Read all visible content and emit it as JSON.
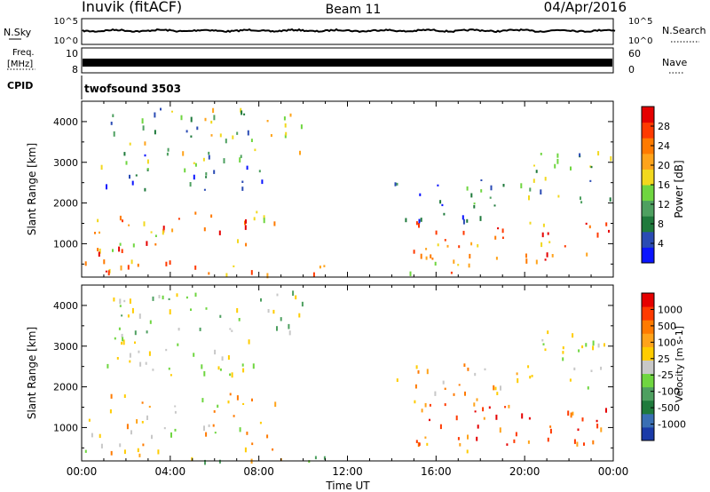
{
  "header": {
    "station": "Inuvik (fitACF)",
    "beam": "Beam 11",
    "date": "04/Apr/2016"
  },
  "top_panels": {
    "nsky": {
      "label": "N.Sky",
      "ticks": [
        "10^5",
        "10^0"
      ],
      "right_label": "N.Search",
      "right_ticks": [
        "10^5",
        "10^0"
      ]
    },
    "freq": {
      "label_line1": "Freq.",
      "label_line2": "[MHz]",
      "ticks": [
        "10",
        "8"
      ],
      "right_label": "Nave",
      "right_ticks": [
        "60",
        "0"
      ]
    },
    "cpid": {
      "label": "CPID",
      "program": "twofsound 3503"
    }
  },
  "chart_data": [
    {
      "type": "heatmap",
      "title": "",
      "xlabel": "",
      "ylabel": "Slant Range [km]",
      "xlim": [
        0,
        24
      ],
      "ylim": [
        180,
        4500
      ],
      "xtick_labels": [],
      "ytick_labels": [
        "1000",
        "2000",
        "3000",
        "4000"
      ],
      "colorbar": {
        "label": "Power [dB]",
        "range": [
          0,
          30
        ],
        "tick_labels": [
          "4",
          "8",
          "12",
          "16",
          "20",
          "24",
          "28"
        ],
        "colors": [
          "#0a14ff",
          "#2a4bb4",
          "#1f7a3c",
          "#4ea060",
          "#6fd640",
          "#f2d81e",
          "#ffa31a",
          "#ff7a00",
          "#ff3a00",
          "#e50000"
        ]
      }
    },
    {
      "type": "heatmap",
      "title": "",
      "xlabel": "Time UT",
      "ylabel": "Slant Range [km]",
      "xlim": [
        0,
        24
      ],
      "ylim": [
        180,
        4500
      ],
      "xtick_labels": [
        "00:00",
        "04:00",
        "08:00",
        "12:00",
        "16:00",
        "20:00",
        "00:00"
      ],
      "ytick_labels": [
        "1000",
        "2000",
        "3000",
        "4000"
      ],
      "colorbar": {
        "label": "Velocity [m s-1]",
        "tick_labels": [
          "1000",
          "500",
          "100",
          "25",
          "-25",
          "-100",
          "-500",
          "-1000"
        ],
        "colors": [
          "#1a3aa8",
          "#3a6fb4",
          "#1f7a3c",
          "#4ea060",
          "#6fd640",
          "#c8c8c8",
          "#ffcc00",
          "#ffa31a",
          "#ff7a00",
          "#ff3a00",
          "#e50000"
        ]
      }
    }
  ]
}
